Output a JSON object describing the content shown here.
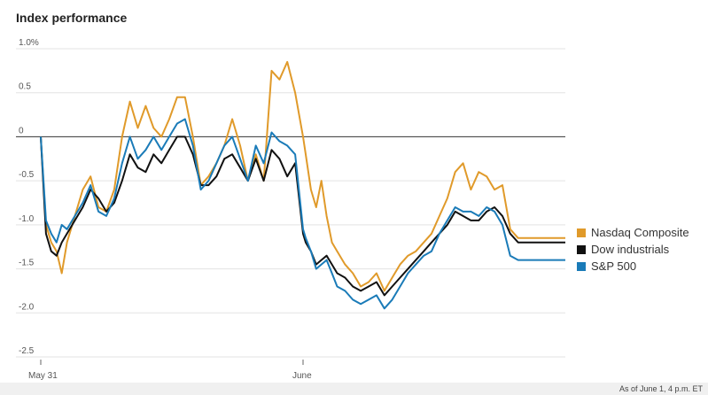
{
  "chart_data": {
    "type": "line",
    "title": "Index performance",
    "y_ticks": [
      "1.0%",
      "0.5",
      "0",
      "-0.5",
      "-1.0",
      "-1.5",
      "-2.0",
      "-2.5"
    ],
    "y_tick_values": [
      1.0,
      0.5,
      0,
      -0.5,
      -1.0,
      -1.5,
      -2.0,
      -2.5
    ],
    "ylim": [
      -2.5,
      1.0
    ],
    "x_ticks": [
      "May 31",
      "June"
    ],
    "x_tick_positions": [
      0,
      100
    ],
    "xlim": [
      0,
      200
    ],
    "grid": true,
    "legend_placement": "right",
    "series": [
      {
        "name": "Nasdaq Composite",
        "color": "#e09a2a",
        "x": [
          0,
          2,
          4,
          6,
          8,
          10,
          13,
          16,
          19,
          22,
          25,
          28,
          31,
          34,
          37,
          40,
          43,
          46,
          49,
          52,
          55,
          58,
          61,
          64,
          67,
          70,
          73,
          76,
          79,
          82,
          85,
          88,
          91,
          94,
          97,
          100,
          101,
          103,
          105,
          107,
          109,
          111,
          113,
          116,
          119,
          122,
          125,
          128,
          131,
          134,
          137,
          140,
          143,
          146,
          149,
          152,
          155,
          158,
          161,
          164,
          167,
          170,
          173,
          176,
          179,
          182,
          185,
          188,
          191,
          194,
          197,
          200
        ],
        "values": [
          0.0,
          -1.0,
          -1.2,
          -1.3,
          -1.55,
          -1.2,
          -0.9,
          -0.6,
          -0.45,
          -0.8,
          -0.85,
          -0.6,
          0.0,
          0.4,
          0.1,
          0.35,
          0.1,
          0.0,
          0.2,
          0.45,
          0.45,
          0.0,
          -0.55,
          -0.45,
          -0.3,
          -0.1,
          0.2,
          -0.1,
          -0.5,
          -0.2,
          -0.5,
          0.75,
          0.65,
          0.85,
          0.5,
          0.0,
          -0.2,
          -0.6,
          -0.8,
          -0.5,
          -0.9,
          -1.2,
          -1.3,
          -1.45,
          -1.55,
          -1.7,
          -1.65,
          -1.55,
          -1.75,
          -1.6,
          -1.45,
          -1.35,
          -1.3,
          -1.2,
          -1.1,
          -0.9,
          -0.7,
          -0.4,
          -0.3,
          -0.6,
          -0.4,
          -0.45,
          -0.6,
          -0.55,
          -1.05,
          -1.15,
          -1.15,
          -1.15,
          -1.15,
          -1.15,
          -1.15,
          -1.15
        ]
      },
      {
        "name": "Dow industrials",
        "color": "#111111",
        "x": [
          0,
          2,
          4,
          6,
          8,
          10,
          13,
          16,
          19,
          22,
          25,
          28,
          31,
          34,
          37,
          40,
          43,
          46,
          49,
          52,
          55,
          58,
          61,
          64,
          67,
          70,
          73,
          76,
          79,
          82,
          85,
          88,
          91,
          94,
          97,
          100,
          101,
          103,
          105,
          107,
          109,
          111,
          113,
          116,
          119,
          122,
          125,
          128,
          131,
          134,
          137,
          140,
          143,
          146,
          149,
          152,
          155,
          158,
          161,
          164,
          167,
          170,
          173,
          176,
          179,
          182,
          185,
          188,
          191,
          194,
          197,
          200
        ],
        "values": [
          0.0,
          -1.1,
          -1.3,
          -1.35,
          -1.2,
          -1.1,
          -0.95,
          -0.8,
          -0.6,
          -0.7,
          -0.85,
          -0.75,
          -0.5,
          -0.2,
          -0.35,
          -0.4,
          -0.2,
          -0.3,
          -0.15,
          0.0,
          0.0,
          -0.2,
          -0.55,
          -0.55,
          -0.45,
          -0.25,
          -0.2,
          -0.35,
          -0.5,
          -0.25,
          -0.5,
          -0.15,
          -0.25,
          -0.45,
          -0.3,
          -1.1,
          -1.2,
          -1.3,
          -1.45,
          -1.4,
          -1.35,
          -1.45,
          -1.55,
          -1.6,
          -1.7,
          -1.75,
          -1.7,
          -1.65,
          -1.8,
          -1.7,
          -1.6,
          -1.5,
          -1.4,
          -1.3,
          -1.2,
          -1.1,
          -1.0,
          -0.85,
          -0.9,
          -0.95,
          -0.95,
          -0.85,
          -0.8,
          -0.9,
          -1.1,
          -1.2,
          -1.2,
          -1.2,
          -1.2,
          -1.2,
          -1.2,
          -1.2
        ]
      },
      {
        "name": "S&P 500",
        "color": "#1a7bb8",
        "x": [
          0,
          2,
          4,
          6,
          8,
          10,
          13,
          16,
          19,
          22,
          25,
          28,
          31,
          34,
          37,
          40,
          43,
          46,
          49,
          52,
          55,
          58,
          61,
          64,
          67,
          70,
          73,
          76,
          79,
          82,
          85,
          88,
          91,
          94,
          97,
          100,
          101,
          103,
          105,
          107,
          109,
          111,
          113,
          116,
          119,
          122,
          125,
          128,
          131,
          134,
          137,
          140,
          143,
          146,
          149,
          152,
          155,
          158,
          161,
          164,
          167,
          170,
          173,
          176,
          179,
          182,
          185,
          188,
          191,
          194,
          197,
          200
        ],
        "values": [
          0.0,
          -0.95,
          -1.1,
          -1.2,
          -1.0,
          -1.05,
          -0.9,
          -0.75,
          -0.55,
          -0.85,
          -0.9,
          -0.7,
          -0.3,
          0.0,
          -0.25,
          -0.15,
          0.0,
          -0.15,
          0.0,
          0.15,
          0.2,
          -0.1,
          -0.6,
          -0.5,
          -0.3,
          -0.1,
          0.0,
          -0.25,
          -0.5,
          -0.1,
          -0.3,
          0.05,
          -0.05,
          -0.1,
          -0.2,
          -1.05,
          -1.15,
          -1.3,
          -1.5,
          -1.45,
          -1.4,
          -1.55,
          -1.7,
          -1.75,
          -1.85,
          -1.9,
          -1.85,
          -1.8,
          -1.95,
          -1.85,
          -1.7,
          -1.55,
          -1.45,
          -1.35,
          -1.3,
          -1.1,
          -0.95,
          -0.8,
          -0.85,
          -0.85,
          -0.9,
          -0.8,
          -0.85,
          -1.0,
          -1.35,
          -1.4,
          -1.4,
          -1.4,
          -1.4,
          -1.4,
          -1.4,
          -1.4
        ]
      }
    ],
    "legend": [
      "Nasdaq Composite",
      "Dow industrials",
      "S&P 500"
    ],
    "footnote": "As of June 1, 4 p.m. ET"
  }
}
